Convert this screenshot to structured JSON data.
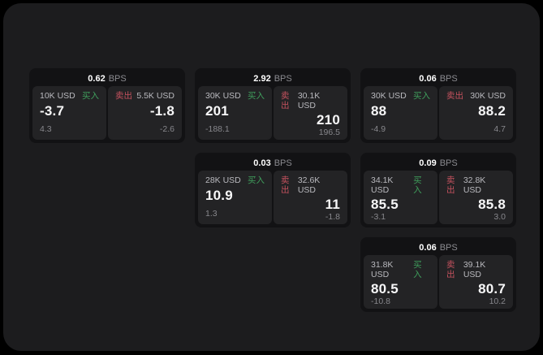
{
  "labels": {
    "buy": "买入",
    "sell": "卖出",
    "bps_unit": "BPS"
  },
  "colors": {
    "buy_green": "#3f9e5c",
    "sell_red": "#c4525e",
    "panel_bg": "#1c1c1e",
    "card_bg": "#121214",
    "quote_bg": "#232325"
  },
  "cards": [
    {
      "col": 1,
      "row": 1,
      "bps": "0.62",
      "buy": {
        "size": "10K USD",
        "value": "-3.7",
        "delta": "4.3"
      },
      "sell": {
        "size": "5.5K USD",
        "value": "-1.8",
        "delta": "-2.6"
      }
    },
    {
      "col": 2,
      "row": 1,
      "bps": "2.92",
      "buy": {
        "size": "30K USD",
        "value": "201",
        "delta": "-188.1"
      },
      "sell": {
        "size": "30.1K USD",
        "value": "210",
        "delta": "196.5"
      }
    },
    {
      "col": 3,
      "row": 1,
      "bps": "0.06",
      "buy": {
        "size": "30K USD",
        "value": "88",
        "delta": "-4.9"
      },
      "sell": {
        "size": "30K USD",
        "value": "88.2",
        "delta": "4.7"
      }
    },
    {
      "col": 2,
      "row": 2,
      "bps": "0.03",
      "buy": {
        "size": "28K USD",
        "value": "10.9",
        "delta": "1.3"
      },
      "sell": {
        "size": "32.6K USD",
        "value": "11",
        "delta": "-1.8"
      }
    },
    {
      "col": 3,
      "row": 2,
      "bps": "0.09",
      "buy": {
        "size": "34.1K USD",
        "value": "85.5",
        "delta": "-3.1"
      },
      "sell": {
        "size": "32.8K USD",
        "value": "85.8",
        "delta": "3.0"
      }
    },
    {
      "col": 3,
      "row": 3,
      "bps": "0.06",
      "buy": {
        "size": "31.8K USD",
        "value": "80.5",
        "delta": "-10.8"
      },
      "sell": {
        "size": "39.1K USD",
        "value": "80.7",
        "delta": "10.2"
      }
    }
  ]
}
